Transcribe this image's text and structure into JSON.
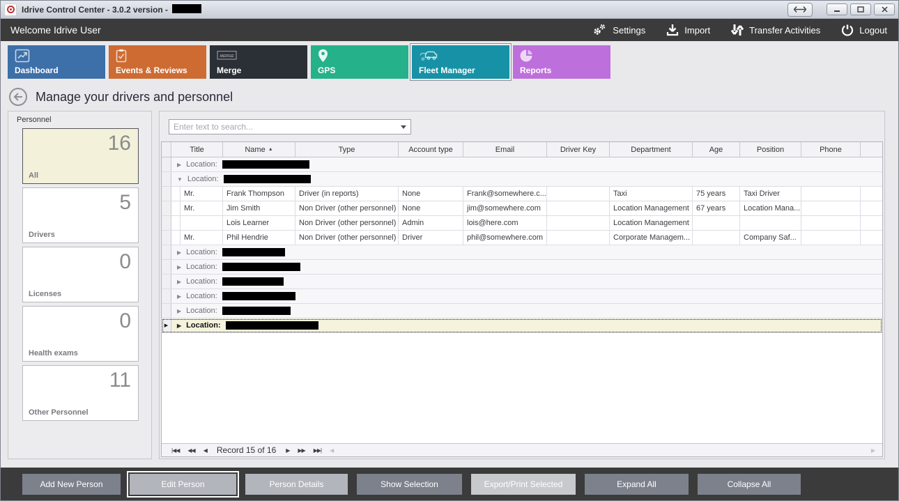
{
  "window": {
    "title": "Idrive Control Center - 3.0.2 version -",
    "title_redacted": true,
    "controls": {
      "minimize": "–",
      "maximize": "",
      "close": "x"
    }
  },
  "topbar": {
    "welcome": "Welcome Idrive User",
    "menu": [
      {
        "label": "Settings",
        "icon": "gears-icon"
      },
      {
        "label": "Import",
        "icon": "import-icon"
      },
      {
        "label": "Transfer Activities",
        "icon": "transfer-icon"
      },
      {
        "label": "Logout",
        "icon": "power-icon"
      }
    ]
  },
  "tabs": [
    {
      "label": "Dashboard",
      "color": "#3d6fa8",
      "icon": "line-chart-icon",
      "selected": false
    },
    {
      "label": "Events & Reviews",
      "color": "#cd6b32",
      "icon": "clipboard-check-icon",
      "selected": false
    },
    {
      "label": "Merge",
      "color": "#2b2f36",
      "icon": "merge-icon",
      "selected": false
    },
    {
      "label": "GPS",
      "color": "#25b18a",
      "icon": "location-pin-icon",
      "selected": false
    },
    {
      "label": "Fleet Manager",
      "color": "#1791a5",
      "icon": "fleet-icon",
      "selected": true
    },
    {
      "label": "Reports",
      "color": "#bd6fdb",
      "icon": "pie-chart-icon",
      "selected": false
    }
  ],
  "page": {
    "heading": "Manage your drivers and personnel"
  },
  "sidebar": {
    "group_label": "Personnel",
    "cards": [
      {
        "label": "All",
        "count": "16",
        "selected": true
      },
      {
        "label": "Drivers",
        "count": "5",
        "selected": false
      },
      {
        "label": "Licenses",
        "count": "0",
        "selected": false
      },
      {
        "label": "Health exams",
        "count": "0",
        "selected": false
      },
      {
        "label": "Other Personnel",
        "count": "11",
        "selected": false
      }
    ]
  },
  "search": {
    "placeholder": "Enter text to search..."
  },
  "grid": {
    "columns": [
      "Title",
      "Name",
      "Type",
      "Account type",
      "Email",
      "Driver Key",
      "Department",
      "Age",
      "Position",
      "Phone"
    ],
    "sort": {
      "column": "Name",
      "direction": "asc",
      "glyph": "▲"
    },
    "group_label": "Location:",
    "rows": [
      {
        "type": "group",
        "state": "collapsed",
        "selected": false,
        "redact_width": 125
      },
      {
        "type": "group",
        "state": "expanded",
        "selected": false,
        "redact_width": 125
      },
      {
        "type": "person",
        "cells": [
          "Mr.",
          "Frank Thompson",
          "Driver (in reports)",
          "None",
          "Frank@somewhere.c...",
          "",
          "Taxi",
          "75 years",
          "Taxi Driver",
          ""
        ]
      },
      {
        "type": "person",
        "cells": [
          "Mr.",
          "Jim Smith",
          "Non Driver (other personnel)",
          "None",
          "jim@somewhere.com",
          "",
          "Location Management",
          "67 years",
          "Location Mana...",
          ""
        ]
      },
      {
        "type": "person",
        "cells": [
          "",
          "Lois Learner",
          "Non Driver (other personnel)",
          "Admin",
          "lois@here.com",
          "",
          "Location Management",
          "",
          "",
          ""
        ]
      },
      {
        "type": "person",
        "cells": [
          "Mr.",
          "Phil Hendrie",
          "Non Driver (other personnel)",
          "Driver",
          "phil@somewhere.com",
          "",
          "Corporate Managem...",
          "",
          "Company Saf...",
          ""
        ]
      },
      {
        "type": "group",
        "state": "collapsed",
        "selected": false,
        "redact_width": 90
      },
      {
        "type": "group",
        "state": "collapsed",
        "selected": false,
        "redact_width": 112
      },
      {
        "type": "group",
        "state": "collapsed",
        "selected": false,
        "redact_width": 88
      },
      {
        "type": "group",
        "state": "collapsed",
        "selected": false,
        "redact_width": 105
      },
      {
        "type": "group",
        "state": "collapsed",
        "selected": false,
        "redact_width": 98
      },
      {
        "type": "group",
        "state": "collapsed",
        "selected": true,
        "redact_width": 133
      }
    ]
  },
  "record_navigator": {
    "label": "Record 15 of 16",
    "buttons_left": [
      "|◀◀",
      "◀◀",
      "◀"
    ],
    "buttons_right": [
      "▶",
      "▶▶",
      "▶▶|"
    ]
  },
  "footer_buttons": [
    {
      "label": "Add New Person",
      "style": "normal",
      "focused": false
    },
    {
      "label": "Edit Person",
      "style": "light",
      "focused": true
    },
    {
      "label": "Person Details",
      "style": "light",
      "focused": false
    },
    {
      "label": "Show Selection",
      "style": "normal",
      "focused": false
    },
    {
      "label": "Export/Print Selected",
      "style": "lighter",
      "focused": false
    },
    {
      "label": "Expand All",
      "style": "normal",
      "focused": false
    },
    {
      "label": "Collapse All",
      "style": "normal",
      "focused": false
    }
  ],
  "colors": {
    "topbar": "#3b3b3b",
    "selected_card_bg": "#f3f1da",
    "selected_row_bg": "#f5f3dc",
    "button_normal": "#7d818c",
    "button_light": "#b2b5bb",
    "button_lighter": "#c7c9cd"
  }
}
